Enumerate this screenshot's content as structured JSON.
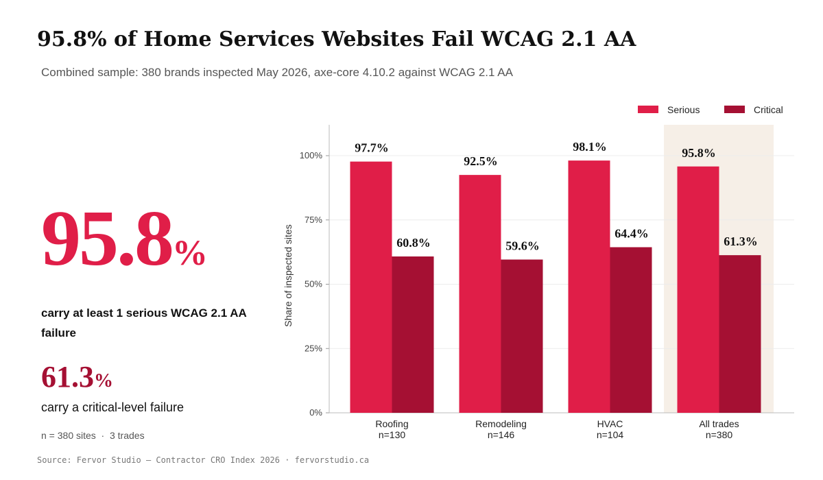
{
  "header": {
    "title": "95.8% of Home Services Websites Fail WCAG 2.1 AA",
    "subtitle": "Combined sample: 380 brands inspected May 2026, axe-core 4.10.2 against WCAG 2.1 AA"
  },
  "stats": {
    "headline": {
      "value": 95.8,
      "unit": "%",
      "caption": "carry at least 1 serious WCAG 2.1 AA failure"
    },
    "secondary": {
      "value": 61.3,
      "unit": "%",
      "caption": "carry a critical-level failure"
    },
    "sample_note": "n = 380 sites  ·  3 trades"
  },
  "chart_data": {
    "type": "bar",
    "categories": [
      "Roofing",
      "Remodeling",
      "HVAC",
      "All trades"
    ],
    "sample_sizes": [
      "n=130",
      "n=146",
      "n=104",
      "n=380"
    ],
    "series": [
      {
        "name": "Serious",
        "color": "#e01e48",
        "values": [
          97.7,
          92.5,
          98.1,
          95.8
        ],
        "value_labels": [
          "97.7%",
          "92.5%",
          "98.1%",
          "95.8%"
        ]
      },
      {
        "name": "Critical",
        "color": "#a51033",
        "values": [
          60.8,
          59.6,
          64.4,
          61.3
        ],
        "value_labels": [
          "60.8%",
          "59.6%",
          "64.4%",
          "61.3%"
        ]
      }
    ],
    "y_label": "Share of inspected sites",
    "ylim": [
      0,
      112
    ],
    "yticks": [
      {
        "value": 0,
        "label": "0%"
      },
      {
        "value": 25,
        "label": "25%"
      },
      {
        "value": 50,
        "label": "50%"
      },
      {
        "value": 75,
        "label": "75%"
      },
      {
        "value": 100,
        "label": "100%"
      }
    ],
    "grid": true,
    "legend": "top-right",
    "highlight_index": 3
  },
  "footer": {
    "source": "Source: Fervor Studio — Contractor CRO Index 2026 · fervorstudio.ca"
  }
}
